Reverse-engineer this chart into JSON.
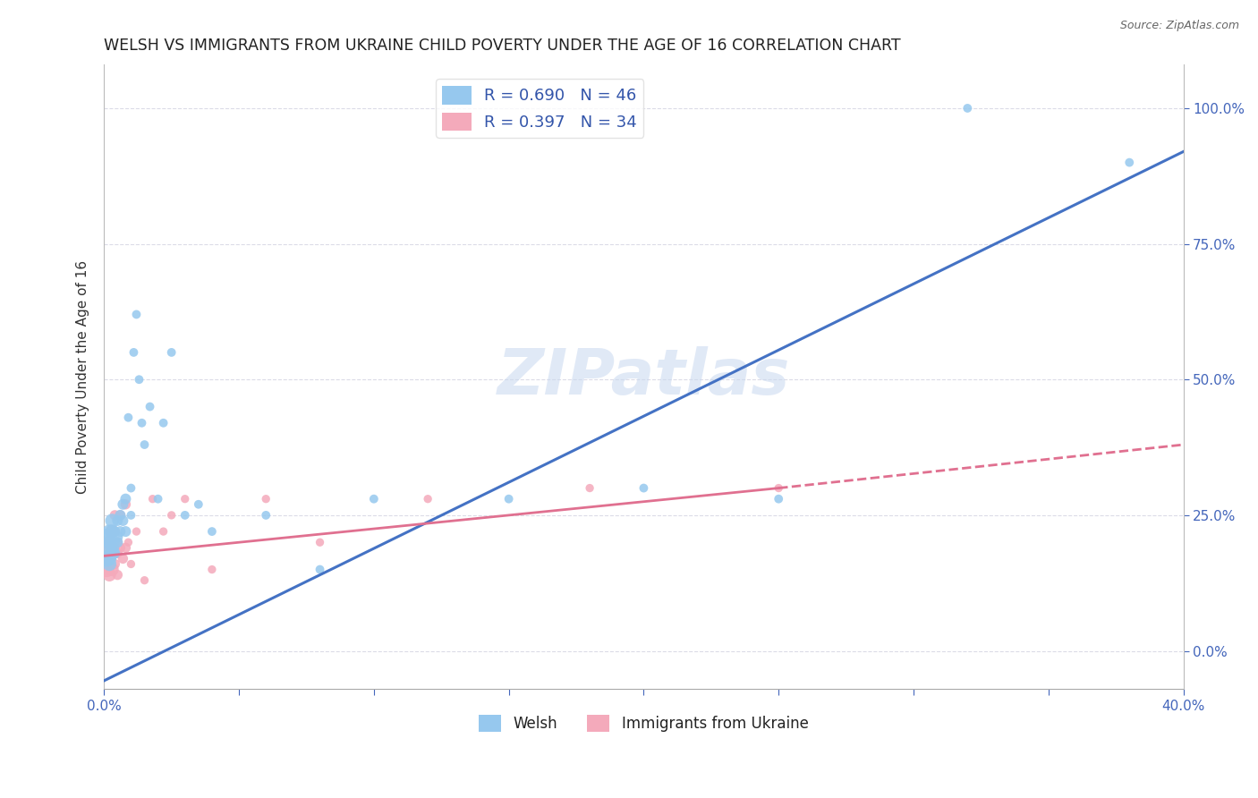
{
  "title": "WELSH VS IMMIGRANTS FROM UKRAINE CHILD POVERTY UNDER THE AGE OF 16 CORRELATION CHART",
  "source": "Source: ZipAtlas.com",
  "ylabel": "Child Poverty Under the Age of 16",
  "xlim": [
    0.0,
    0.4
  ],
  "ylim": [
    -0.07,
    1.08
  ],
  "yticks": [
    0.0,
    0.25,
    0.5,
    0.75,
    1.0
  ],
  "ytick_labels": [
    "0.0%",
    "25.0%",
    "50.0%",
    "75.0%",
    "100.0%"
  ],
  "welsh_R": 0.69,
  "welsh_N": 46,
  "ukraine_R": 0.397,
  "ukraine_N": 34,
  "welsh_color": "#96C8EE",
  "ukraine_color": "#F4AABB",
  "welsh_line_color": "#4472C4",
  "ukraine_line_color": "#E07090",
  "ukraine_line_solid_color": "#E07090",
  "background_color": "#FFFFFF",
  "welsh_x": [
    0.001,
    0.001,
    0.001,
    0.002,
    0.002,
    0.002,
    0.002,
    0.003,
    0.003,
    0.003,
    0.003,
    0.004,
    0.004,
    0.004,
    0.005,
    0.005,
    0.005,
    0.006,
    0.006,
    0.007,
    0.007,
    0.008,
    0.008,
    0.009,
    0.01,
    0.01,
    0.011,
    0.012,
    0.013,
    0.014,
    0.015,
    0.017,
    0.02,
    0.022,
    0.025,
    0.03,
    0.035,
    0.04,
    0.06,
    0.08,
    0.1,
    0.15,
    0.2,
    0.25,
    0.32,
    0.38
  ],
  "welsh_y": [
    0.17,
    0.19,
    0.21,
    0.17,
    0.2,
    0.22,
    0.16,
    0.18,
    0.22,
    0.19,
    0.24,
    0.2,
    0.18,
    0.22,
    0.21,
    0.24,
    0.2,
    0.25,
    0.22,
    0.27,
    0.24,
    0.22,
    0.28,
    0.43,
    0.25,
    0.3,
    0.55,
    0.62,
    0.5,
    0.42,
    0.38,
    0.45,
    0.28,
    0.42,
    0.55,
    0.25,
    0.27,
    0.22,
    0.25,
    0.15,
    0.28,
    0.28,
    0.3,
    0.28,
    1.0,
    0.9
  ],
  "ukraine_x": [
    0.001,
    0.001,
    0.002,
    0.002,
    0.002,
    0.003,
    0.003,
    0.003,
    0.004,
    0.004,
    0.004,
    0.004,
    0.005,
    0.005,
    0.005,
    0.006,
    0.006,
    0.007,
    0.008,
    0.008,
    0.009,
    0.01,
    0.012,
    0.015,
    0.018,
    0.022,
    0.025,
    0.03,
    0.04,
    0.06,
    0.08,
    0.12,
    0.18,
    0.25
  ],
  "ukraine_y": [
    0.15,
    0.18,
    0.14,
    0.17,
    0.2,
    0.15,
    0.18,
    0.22,
    0.16,
    0.19,
    0.22,
    0.25,
    0.18,
    0.2,
    0.14,
    0.19,
    0.25,
    0.17,
    0.19,
    0.27,
    0.2,
    0.16,
    0.22,
    0.13,
    0.28,
    0.22,
    0.25,
    0.28,
    0.15,
    0.28,
    0.2,
    0.28,
    0.3,
    0.3
  ],
  "welsh_line_x0": 0.0,
  "welsh_line_y0": -0.055,
  "welsh_line_x1": 0.4,
  "welsh_line_y1": 0.92,
  "ukraine_line_solid_x0": 0.0,
  "ukraine_line_solid_y0": 0.175,
  "ukraine_line_solid_x1": 0.25,
  "ukraine_line_solid_y1": 0.3,
  "ukraine_line_dash_x0": 0.25,
  "ukraine_line_dash_y0": 0.3,
  "ukraine_line_dash_x1": 0.4,
  "ukraine_line_dash_y1": 0.38,
  "num_xticks": 9,
  "watermark_text": "ZIPatlas",
  "title_fontsize": 12.5,
  "label_fontsize": 11,
  "tick_fontsize": 11
}
